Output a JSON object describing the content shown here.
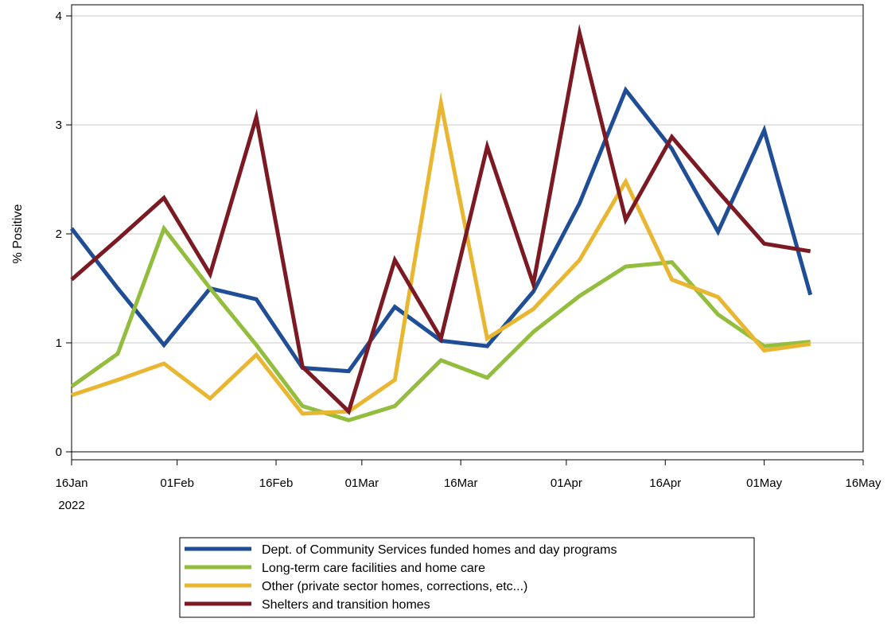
{
  "chart_data": {
    "type": "line",
    "ylabel": "% Positive",
    "xlabel": "",
    "ylim": [
      0,
      4
    ],
    "xlim": [
      "2022-01-16",
      "2022-05-16"
    ],
    "y_ticks": [
      0,
      1,
      2,
      3,
      4
    ],
    "x_ticks": [
      {
        "date": "2022-01-16",
        "label": "16Jan",
        "sublabel": "2022"
      },
      {
        "date": "2022-02-01",
        "label": "01Feb",
        "sublabel": ""
      },
      {
        "date": "2022-02-16",
        "label": "16Feb",
        "sublabel": ""
      },
      {
        "date": "2022-03-01",
        "label": "01Mar",
        "sublabel": ""
      },
      {
        "date": "2022-03-16",
        "label": "16Mar",
        "sublabel": ""
      },
      {
        "date": "2022-04-01",
        "label": "01Apr",
        "sublabel": ""
      },
      {
        "date": "2022-04-16",
        "label": "16Apr",
        "sublabel": ""
      },
      {
        "date": "2022-05-01",
        "label": "01May",
        "sublabel": ""
      },
      {
        "date": "2022-05-16",
        "label": "16May",
        "sublabel": ""
      }
    ],
    "grid": "horizontal",
    "legend_position": "bottom",
    "x": [
      "2022-01-16",
      "2022-01-23",
      "2022-01-30",
      "2022-02-06",
      "2022-02-13",
      "2022-02-20",
      "2022-02-27",
      "2022-03-06",
      "2022-03-13",
      "2022-03-20",
      "2022-03-27",
      "2022-04-03",
      "2022-04-10",
      "2022-04-17",
      "2022-04-24",
      "2022-05-01",
      "2022-05-08"
    ],
    "series": [
      {
        "name": "Dept. of Community Services funded homes and day programs",
        "color": "#1f4e96",
        "values": [
          2.05,
          1.5,
          0.98,
          1.5,
          1.4,
          0.77,
          0.74,
          1.33,
          1.02,
          0.97,
          1.47,
          2.28,
          3.32,
          2.78,
          2.02,
          2.95,
          1.44
        ]
      },
      {
        "name": "Long-term care facilities and home care",
        "color": "#93bd3c",
        "values": [
          0.6,
          0.9,
          2.05,
          1.5,
          0.98,
          0.42,
          0.29,
          0.42,
          0.84,
          0.68,
          1.1,
          1.43,
          1.7,
          1.74,
          1.26,
          0.97,
          1.01
        ]
      },
      {
        "name": "Other (private sector homes, corrections, etc...)",
        "color": "#e9b631",
        "values": [
          0.52,
          0.66,
          0.81,
          0.49,
          0.89,
          0.35,
          0.37,
          0.66,
          3.2,
          1.04,
          1.31,
          1.76,
          2.48,
          1.58,
          1.42,
          0.93,
          0.99
        ]
      },
      {
        "name": "Shelters and transition homes",
        "color": "#7b1a22",
        "values": [
          1.58,
          1.95,
          2.33,
          1.63,
          3.07,
          0.78,
          0.37,
          1.76,
          1.04,
          2.8,
          1.54,
          3.84,
          2.13,
          2.89,
          2.39,
          1.91,
          1.84
        ]
      }
    ]
  }
}
